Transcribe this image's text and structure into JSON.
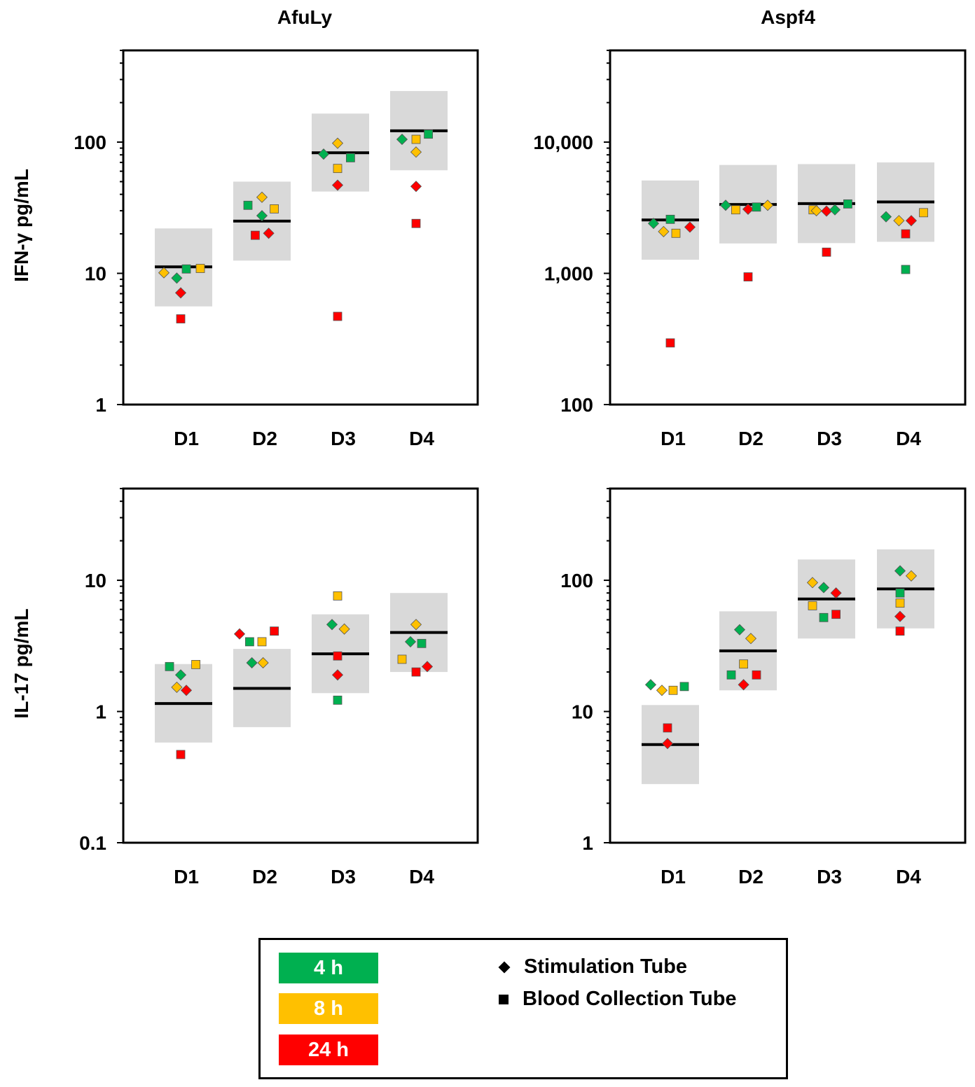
{
  "chart_data": [
    {
      "type": "scatter",
      "panel": "top-left",
      "title": "AfuLy",
      "ylabel": "IFN-γ pg/mL",
      "yscale": "log",
      "ylim": [
        1,
        500
      ],
      "yticks": [
        1,
        10,
        100
      ],
      "ytick_labels": [
        "1",
        "10",
        "100"
      ],
      "categories": [
        "D1",
        "D2",
        "D3",
        "D4"
      ],
      "bands": [
        {
          "category": "D1",
          "low": 5.6,
          "high": 22,
          "median": 11.2
        },
        {
          "category": "D2",
          "low": 12.5,
          "high": 50,
          "median": 25
        },
        {
          "category": "D3",
          "low": 42,
          "high": 165,
          "median": 83
        },
        {
          "category": "D4",
          "low": 61,
          "high": 245,
          "median": 122
        }
      ],
      "points": [
        {
          "category": "D1",
          "offset": -0.35,
          "value": 10.1,
          "shape": "diamond",
          "time": "8 h"
        },
        {
          "category": "D1",
          "offset": -0.12,
          "value": 9.2,
          "shape": "diamond",
          "time": "4 h"
        },
        {
          "category": "D1",
          "offset": 0.05,
          "value": 10.8,
          "shape": "square",
          "time": "4 h"
        },
        {
          "category": "D1",
          "offset": 0.3,
          "value": 10.9,
          "shape": "square",
          "time": "8 h"
        },
        {
          "category": "D1",
          "offset": -0.05,
          "value": 7.1,
          "shape": "diamond",
          "time": "24 h"
        },
        {
          "category": "D1",
          "offset": -0.05,
          "value": 4.5,
          "shape": "square",
          "time": "24 h"
        },
        {
          "category": "D2",
          "offset": -0.25,
          "value": 33,
          "shape": "square",
          "time": "4 h"
        },
        {
          "category": "D2",
          "offset": 0.0,
          "value": 38,
          "shape": "diamond",
          "time": "8 h"
        },
        {
          "category": "D2",
          "offset": 0.22,
          "value": 31,
          "shape": "square",
          "time": "8 h"
        },
        {
          "category": "D2",
          "offset": 0.0,
          "value": 27.5,
          "shape": "diamond",
          "time": "4 h"
        },
        {
          "category": "D2",
          "offset": -0.12,
          "value": 19.5,
          "shape": "square",
          "time": "24 h"
        },
        {
          "category": "D2",
          "offset": 0.12,
          "value": 20.2,
          "shape": "diamond",
          "time": "24 h"
        },
        {
          "category": "D3",
          "offset": -0.3,
          "value": 81,
          "shape": "diamond",
          "time": "4 h"
        },
        {
          "category": "D3",
          "offset": -0.05,
          "value": 98,
          "shape": "diamond",
          "time": "8 h"
        },
        {
          "category": "D3",
          "offset": 0.18,
          "value": 76,
          "shape": "square",
          "time": "4 h"
        },
        {
          "category": "D3",
          "offset": -0.05,
          "value": 63,
          "shape": "square",
          "time": "8 h"
        },
        {
          "category": "D3",
          "offset": -0.05,
          "value": 47,
          "shape": "diamond",
          "time": "24 h"
        },
        {
          "category": "D3",
          "offset": -0.05,
          "value": 4.7,
          "shape": "square",
          "time": "24 h"
        },
        {
          "category": "D4",
          "offset": -0.3,
          "value": 105,
          "shape": "diamond",
          "time": "4 h"
        },
        {
          "category": "D4",
          "offset": -0.05,
          "value": 105,
          "shape": "square",
          "time": "8 h"
        },
        {
          "category": "D4",
          "offset": 0.17,
          "value": 115,
          "shape": "square",
          "time": "4 h"
        },
        {
          "category": "D4",
          "offset": -0.05,
          "value": 84,
          "shape": "diamond",
          "time": "8 h"
        },
        {
          "category": "D4",
          "offset": -0.05,
          "value": 46,
          "shape": "diamond",
          "time": "24 h"
        },
        {
          "category": "D4",
          "offset": -0.05,
          "value": 24,
          "shape": "square",
          "time": "24 h"
        }
      ]
    },
    {
      "type": "scatter",
      "panel": "top-right",
      "title": "Aspf4",
      "ylabel": "",
      "yscale": "log",
      "ylim": [
        100,
        50000
      ],
      "yticks": [
        100,
        1000,
        10000
      ],
      "ytick_labels": [
        "100",
        "1,000",
        "10,000"
      ],
      "categories": [
        "D1",
        "D2",
        "D3",
        "D4"
      ],
      "bands": [
        {
          "category": "D1",
          "low": 1270,
          "high": 5100,
          "median": 2550
        },
        {
          "category": "D2",
          "low": 1690,
          "high": 6700,
          "median": 3350
        },
        {
          "category": "D3",
          "low": 1700,
          "high": 6800,
          "median": 3400
        },
        {
          "category": "D4",
          "low": 1740,
          "high": 7000,
          "median": 3500
        }
      ],
      "points": [
        {
          "category": "D1",
          "offset": -0.3,
          "value": 2400,
          "shape": "diamond",
          "time": "4 h"
        },
        {
          "category": "D1",
          "offset": -0.12,
          "value": 2080,
          "shape": "diamond",
          "time": "8 h"
        },
        {
          "category": "D1",
          "offset": 0.0,
          "value": 2580,
          "shape": "square",
          "time": "4 h"
        },
        {
          "category": "D1",
          "offset": 0.1,
          "value": 2020,
          "shape": "square",
          "time": "8 h"
        },
        {
          "category": "D1",
          "offset": 0.35,
          "value": 2250,
          "shape": "diamond",
          "time": "24 h"
        },
        {
          "category": "D1",
          "offset": 0.0,
          "value": 295,
          "shape": "square",
          "time": "24 h"
        },
        {
          "category": "D2",
          "offset": -0.4,
          "value": 3300,
          "shape": "diamond",
          "time": "4 h"
        },
        {
          "category": "D2",
          "offset": -0.22,
          "value": 3050,
          "shape": "square",
          "time": "8 h"
        },
        {
          "category": "D2",
          "offset": 0.0,
          "value": 3080,
          "shape": "diamond",
          "time": "24 h"
        },
        {
          "category": "D2",
          "offset": 0.15,
          "value": 3200,
          "shape": "square",
          "time": "4 h"
        },
        {
          "category": "D2",
          "offset": 0.35,
          "value": 3300,
          "shape": "diamond",
          "time": "8 h"
        },
        {
          "category": "D2",
          "offset": 0.0,
          "value": 940,
          "shape": "square",
          "time": "24 h"
        },
        {
          "category": "D3",
          "offset": -0.24,
          "value": 3050,
          "shape": "square",
          "time": "8 h"
        },
        {
          "category": "D3",
          "offset": -0.18,
          "value": 3000,
          "shape": "diamond",
          "time": "8 h"
        },
        {
          "category": "D3",
          "offset": 0.0,
          "value": 2980,
          "shape": "diamond",
          "time": "24 h"
        },
        {
          "category": "D3",
          "offset": 0.15,
          "value": 3050,
          "shape": "diamond",
          "time": "4 h"
        },
        {
          "category": "D3",
          "offset": 0.38,
          "value": 3380,
          "shape": "square",
          "time": "4 h"
        },
        {
          "category": "D3",
          "offset": 0.0,
          "value": 1450,
          "shape": "square",
          "time": "24 h"
        },
        {
          "category": "D4",
          "offset": -0.35,
          "value": 2700,
          "shape": "diamond",
          "time": "4 h"
        },
        {
          "category": "D4",
          "offset": -0.12,
          "value": 2520,
          "shape": "diamond",
          "time": "8 h"
        },
        {
          "category": "D4",
          "offset": 0.1,
          "value": 2520,
          "shape": "diamond",
          "time": "24 h"
        },
        {
          "category": "D4",
          "offset": 0.32,
          "value": 2900,
          "shape": "square",
          "time": "8 h"
        },
        {
          "category": "D4",
          "offset": 0.0,
          "value": 2000,
          "shape": "square",
          "time": "24 h"
        },
        {
          "category": "D4",
          "offset": 0.0,
          "value": 1070,
          "shape": "square",
          "time": "4 h"
        }
      ]
    },
    {
      "type": "scatter",
      "panel": "bottom-left",
      "title": "",
      "ylabel": "IL-17 pg/mL",
      "yscale": "log",
      "ylim": [
        0.1,
        50
      ],
      "yticks": [
        0.1,
        1,
        10
      ],
      "ytick_labels": [
        "0.1",
        "1",
        "10"
      ],
      "categories": [
        "D1",
        "D2",
        "D3",
        "D4"
      ],
      "bands": [
        {
          "category": "D1",
          "low": 0.58,
          "high": 2.3,
          "median": 1.15
        },
        {
          "category": "D2",
          "low": 0.76,
          "high": 3.0,
          "median": 1.5
        },
        {
          "category": "D3",
          "low": 1.38,
          "high": 5.5,
          "median": 2.75
        },
        {
          "category": "D4",
          "low": 2.0,
          "high": 8.0,
          "median": 4.0
        }
      ],
      "points": [
        {
          "category": "D1",
          "offset": -0.25,
          "value": 2.2,
          "shape": "square",
          "time": "4 h"
        },
        {
          "category": "D1",
          "offset": -0.05,
          "value": 1.9,
          "shape": "diamond",
          "time": "4 h"
        },
        {
          "category": "D1",
          "offset": 0.22,
          "value": 2.28,
          "shape": "square",
          "time": "8 h"
        },
        {
          "category": "D1",
          "offset": -0.12,
          "value": 1.53,
          "shape": "diamond",
          "time": "8 h"
        },
        {
          "category": "D1",
          "offset": 0.05,
          "value": 1.45,
          "shape": "diamond",
          "time": "24 h"
        },
        {
          "category": "D1",
          "offset": -0.05,
          "value": 0.47,
          "shape": "square",
          "time": "24 h"
        },
        {
          "category": "D2",
          "offset": -0.4,
          "value": 3.9,
          "shape": "diamond",
          "time": "24 h"
        },
        {
          "category": "D2",
          "offset": -0.22,
          "value": 3.4,
          "shape": "square",
          "time": "4 h"
        },
        {
          "category": "D2",
          "offset": 0.0,
          "value": 3.4,
          "shape": "square",
          "time": "8 h"
        },
        {
          "category": "D2",
          "offset": 0.22,
          "value": 4.1,
          "shape": "square",
          "time": "24 h"
        },
        {
          "category": "D2",
          "offset": -0.18,
          "value": 2.35,
          "shape": "diamond",
          "time": "4 h"
        },
        {
          "category": "D2",
          "offset": 0.02,
          "value": 2.35,
          "shape": "diamond",
          "time": "8 h"
        },
        {
          "category": "D3",
          "offset": -0.05,
          "value": 7.6,
          "shape": "square",
          "time": "8 h"
        },
        {
          "category": "D3",
          "offset": -0.15,
          "value": 4.6,
          "shape": "diamond",
          "time": "4 h"
        },
        {
          "category": "D3",
          "offset": 0.07,
          "value": 4.25,
          "shape": "diamond",
          "time": "8 h"
        },
        {
          "category": "D3",
          "offset": -0.05,
          "value": 2.65,
          "shape": "square",
          "time": "24 h"
        },
        {
          "category": "D3",
          "offset": -0.05,
          "value": 1.9,
          "shape": "diamond",
          "time": "24 h"
        },
        {
          "category": "D3",
          "offset": -0.05,
          "value": 1.22,
          "shape": "square",
          "time": "4 h"
        },
        {
          "category": "D4",
          "offset": -0.05,
          "value": 4.6,
          "shape": "diamond",
          "time": "8 h"
        },
        {
          "category": "D4",
          "offset": -0.15,
          "value": 3.4,
          "shape": "diamond",
          "time": "4 h"
        },
        {
          "category": "D4",
          "offset": 0.05,
          "value": 3.3,
          "shape": "square",
          "time": "4 h"
        },
        {
          "category": "D4",
          "offset": -0.3,
          "value": 2.5,
          "shape": "square",
          "time": "8 h"
        },
        {
          "category": "D4",
          "offset": -0.05,
          "value": 2.0,
          "shape": "square",
          "time": "24 h"
        },
        {
          "category": "D4",
          "offset": 0.15,
          "value": 2.2,
          "shape": "diamond",
          "time": "24 h"
        }
      ]
    },
    {
      "type": "scatter",
      "panel": "bottom-right",
      "title": "",
      "ylabel": "",
      "yscale": "log",
      "ylim": [
        1,
        500
      ],
      "yticks": [
        1,
        10,
        100
      ],
      "ytick_labels": [
        "1",
        "10",
        "100"
      ],
      "categories": [
        "D1",
        "D2",
        "D3",
        "D4"
      ],
      "bands": [
        {
          "category": "D1",
          "low": 2.8,
          "high": 11.2,
          "median": 5.6
        },
        {
          "category": "D2",
          "low": 14.5,
          "high": 58,
          "median": 29
        },
        {
          "category": "D3",
          "low": 36,
          "high": 144,
          "median": 72
        },
        {
          "category": "D4",
          "low": 43,
          "high": 172,
          "median": 86
        }
      ],
      "points": [
        {
          "category": "D1",
          "offset": -0.35,
          "value": 16,
          "shape": "diamond",
          "time": "4 h"
        },
        {
          "category": "D1",
          "offset": -0.15,
          "value": 14.5,
          "shape": "diamond",
          "time": "8 h"
        },
        {
          "category": "D1",
          "offset": 0.05,
          "value": 14.5,
          "shape": "square",
          "time": "8 h"
        },
        {
          "category": "D1",
          "offset": 0.25,
          "value": 15.5,
          "shape": "square",
          "time": "4 h"
        },
        {
          "category": "D1",
          "offset": -0.05,
          "value": 7.5,
          "shape": "square",
          "time": "24 h"
        },
        {
          "category": "D1",
          "offset": -0.05,
          "value": 5.7,
          "shape": "diamond",
          "time": "24 h"
        },
        {
          "category": "D2",
          "offset": -0.15,
          "value": 42,
          "shape": "diamond",
          "time": "4 h"
        },
        {
          "category": "D2",
          "offset": 0.05,
          "value": 36,
          "shape": "diamond",
          "time": "8 h"
        },
        {
          "category": "D2",
          "offset": -0.08,
          "value": 23,
          "shape": "square",
          "time": "8 h"
        },
        {
          "category": "D2",
          "offset": -0.3,
          "value": 19,
          "shape": "square",
          "time": "4 h"
        },
        {
          "category": "D2",
          "offset": -0.08,
          "value": 16,
          "shape": "diamond",
          "time": "24 h"
        },
        {
          "category": "D2",
          "offset": 0.15,
          "value": 19,
          "shape": "square",
          "time": "24 h"
        },
        {
          "category": "D3",
          "offset": -0.25,
          "value": 96,
          "shape": "diamond",
          "time": "8 h"
        },
        {
          "category": "D3",
          "offset": -0.05,
          "value": 88,
          "shape": "diamond",
          "time": "4 h"
        },
        {
          "category": "D3",
          "offset": 0.17,
          "value": 80,
          "shape": "diamond",
          "time": "24 h"
        },
        {
          "category": "D3",
          "offset": -0.25,
          "value": 64,
          "shape": "square",
          "time": "8 h"
        },
        {
          "category": "D3",
          "offset": -0.05,
          "value": 52,
          "shape": "square",
          "time": "4 h"
        },
        {
          "category": "D3",
          "offset": 0.17,
          "value": 55,
          "shape": "square",
          "time": "24 h"
        },
        {
          "category": "D4",
          "offset": -0.1,
          "value": 118,
          "shape": "diamond",
          "time": "4 h"
        },
        {
          "category": "D4",
          "offset": 0.1,
          "value": 108,
          "shape": "diamond",
          "time": "8 h"
        },
        {
          "category": "D4",
          "offset": -0.1,
          "value": 80,
          "shape": "square",
          "time": "4 h"
        },
        {
          "category": "D4",
          "offset": -0.1,
          "value": 67,
          "shape": "square",
          "time": "8 h"
        },
        {
          "category": "D4",
          "offset": -0.1,
          "value": 53,
          "shape": "diamond",
          "time": "24 h"
        },
        {
          "category": "D4",
          "offset": -0.1,
          "value": 41,
          "shape": "square",
          "time": "24 h"
        }
      ]
    }
  ],
  "colors": {
    "4 h": "#00b050",
    "8 h": "#ffc000",
    "24 h": "#ff0000",
    "band": "#d9d9d9",
    "median": "#000000"
  },
  "legend": {
    "times": [
      {
        "label": "4 h",
        "color": "#00b050"
      },
      {
        "label": "8 h",
        "color": "#ffc000"
      },
      {
        "label": "24 h",
        "color": "#ff0000"
      }
    ],
    "shapes": [
      {
        "label": "Stimulation Tube",
        "shape": "diamond"
      },
      {
        "label": "Blood Collection Tube",
        "shape": "square"
      }
    ]
  }
}
